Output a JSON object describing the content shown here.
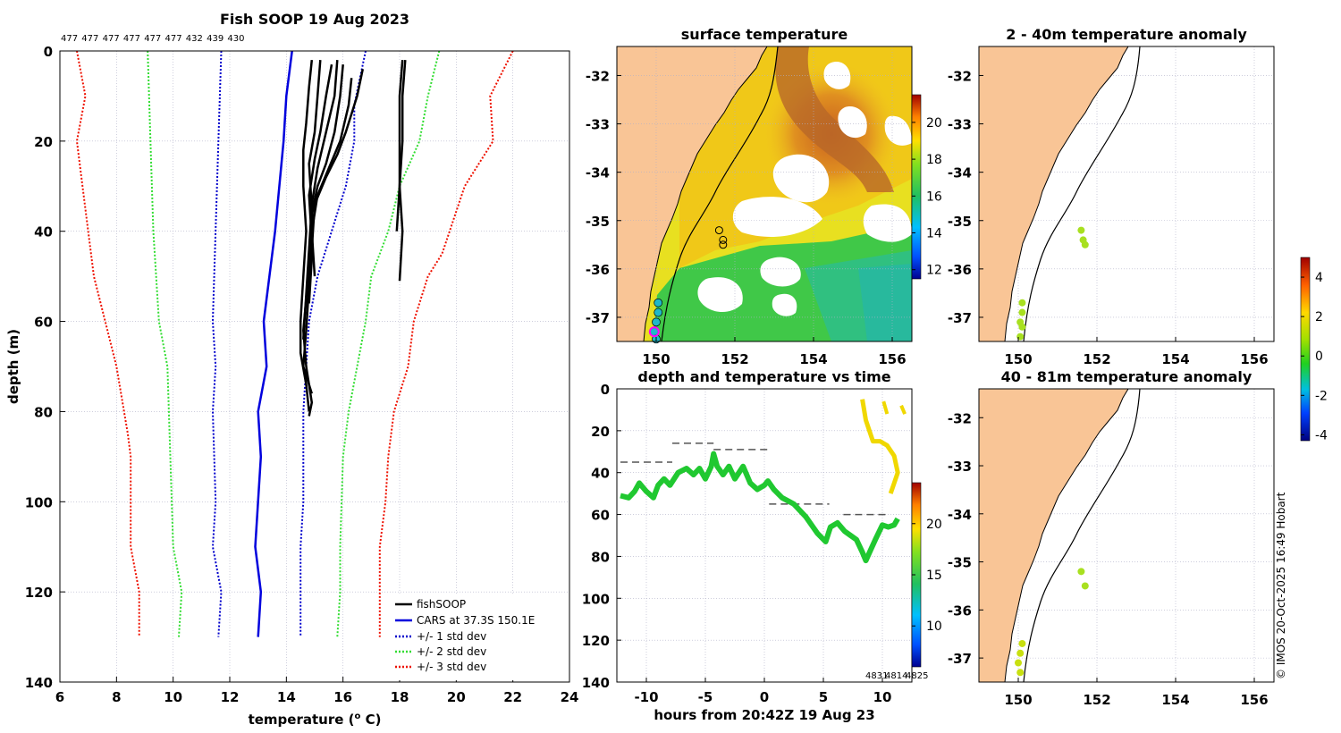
{
  "colors": {
    "land": "#f9c596",
    "cars": "#0000dd",
    "std1": "#0000cc",
    "std2": "#33dd33",
    "std3": "#ee1100",
    "fish": "#000000",
    "grid": "#b0b0c8"
  },
  "chart_data": [
    {
      "type": "line",
      "name": "profile",
      "title": "Fish SOOP 19 Aug 2023",
      "top_labels": [
        "477",
        "477",
        "477",
        "477",
        "477",
        "477",
        "432",
        "439",
        "430"
      ],
      "xlabel": "temperature (",
      "xlabel_sup": "o",
      "xlabel_tail": " C)",
      "ylabel": "depth (m)",
      "xlim": [
        6,
        24
      ],
      "ylim": [
        0,
        140
      ],
      "xticks": [
        "6",
        "8",
        "10",
        "12",
        "14",
        "16",
        "18",
        "20",
        "22",
        "24"
      ],
      "yticks": [
        "0",
        "20",
        "40",
        "60",
        "80",
        "100",
        "120",
        "140"
      ],
      "legend": {
        "position": "bottom-right",
        "entries": [
          "fishSOOP",
          "CARS at 37.3S 150.1E",
          "+/- 1 std dev",
          "+/- 2 std dev",
          "+/- 3 std dev"
        ]
      },
      "cars": [
        [
          14.2,
          0
        ],
        [
          14.0,
          10
        ],
        [
          13.9,
          20
        ],
        [
          13.6,
          40
        ],
        [
          13.2,
          60
        ],
        [
          13.3,
          70
        ],
        [
          13.0,
          80
        ],
        [
          13.1,
          90
        ],
        [
          12.9,
          110
        ],
        [
          13.1,
          120
        ],
        [
          13.0,
          130
        ]
      ],
      "std_offsets": [
        1,
        2,
        3
      ],
      "std_minus": {
        "1": [
          [
            11.7,
            0
          ],
          [
            11.6,
            20
          ],
          [
            11.4,
            60
          ],
          [
            11.5,
            70
          ],
          [
            11.4,
            80
          ],
          [
            11.5,
            100
          ],
          [
            11.4,
            110
          ],
          [
            11.7,
            120
          ],
          [
            11.6,
            130
          ]
        ],
        "2": [
          [
            9.1,
            0
          ],
          [
            9.2,
            20
          ],
          [
            9.3,
            40
          ],
          [
            9.5,
            60
          ],
          [
            9.8,
            70
          ],
          [
            9.9,
            90
          ],
          [
            10.0,
            110
          ],
          [
            10.3,
            120
          ],
          [
            10.2,
            130
          ]
        ],
        "3": [
          [
            6.6,
            0
          ],
          [
            6.9,
            10
          ],
          [
            6.6,
            20
          ],
          [
            6.8,
            30
          ],
          [
            7.2,
            50
          ],
          [
            7.6,
            60
          ],
          [
            8.0,
            70
          ],
          [
            8.4,
            85
          ],
          [
            8.5,
            90
          ],
          [
            8.5,
            110
          ],
          [
            8.8,
            120
          ],
          [
            8.8,
            130
          ]
        ]
      },
      "std_plus": {
        "1": [
          [
            16.8,
            0
          ],
          [
            16.4,
            12
          ],
          [
            16.4,
            20
          ],
          [
            16.1,
            30
          ],
          [
            15.6,
            40
          ],
          [
            15.1,
            50
          ],
          [
            14.8,
            60
          ],
          [
            14.7,
            70
          ],
          [
            14.6,
            80
          ],
          [
            14.6,
            100
          ],
          [
            14.5,
            110
          ],
          [
            14.5,
            130
          ]
        ],
        "2": [
          [
            19.4,
            0
          ],
          [
            19.0,
            10
          ],
          [
            18.7,
            20
          ],
          [
            18.0,
            30
          ],
          [
            17.6,
            40
          ],
          [
            17.0,
            50
          ],
          [
            16.8,
            60
          ],
          [
            16.5,
            70
          ],
          [
            16.2,
            80
          ],
          [
            16.0,
            90
          ],
          [
            15.9,
            110
          ],
          [
            15.9,
            120
          ],
          [
            15.8,
            130
          ]
        ],
        "3": [
          [
            22.0,
            0
          ],
          [
            21.2,
            10
          ],
          [
            21.3,
            20
          ],
          [
            20.3,
            30
          ],
          [
            19.5,
            45
          ],
          [
            19.0,
            50
          ],
          [
            18.5,
            60
          ],
          [
            18.3,
            70
          ],
          [
            17.8,
            80
          ],
          [
            17.6,
            90
          ],
          [
            17.5,
            100
          ],
          [
            17.3,
            110
          ],
          [
            17.3,
            130
          ]
        ]
      },
      "fish": [
        [
          [
            14.9,
            2
          ],
          [
            14.8,
            8
          ],
          [
            14.7,
            16
          ],
          [
            14.6,
            22
          ],
          [
            14.6,
            30
          ],
          [
            14.7,
            40
          ],
          [
            14.6,
            50
          ],
          [
            14.5,
            60
          ],
          [
            14.5,
            67
          ],
          [
            14.7,
            74
          ],
          [
            14.8,
            80
          ]
        ],
        [
          [
            15.2,
            2
          ],
          [
            15.1,
            10
          ],
          [
            15.0,
            18
          ],
          [
            14.8,
            25
          ],
          [
            14.9,
            35
          ],
          [
            14.8,
            45
          ],
          [
            14.7,
            55
          ],
          [
            14.6,
            62
          ],
          [
            14.7,
            70
          ],
          [
            14.9,
            78
          ],
          [
            14.8,
            81
          ]
        ],
        [
          [
            15.6,
            3
          ],
          [
            15.4,
            10
          ],
          [
            15.2,
            18
          ],
          [
            15.0,
            24
          ],
          [
            14.8,
            32
          ],
          [
            14.9,
            42
          ],
          [
            14.8,
            52
          ],
          [
            14.7,
            62
          ],
          [
            14.6,
            70
          ],
          [
            14.9,
            76
          ]
        ],
        [
          [
            15.8,
            2
          ],
          [
            15.7,
            10
          ],
          [
            15.4,
            18
          ],
          [
            15.1,
            26
          ],
          [
            14.9,
            34
          ],
          [
            14.8,
            44
          ],
          [
            14.7,
            54
          ],
          [
            14.6,
            64
          ]
        ],
        [
          [
            16.0,
            3
          ],
          [
            15.9,
            10
          ],
          [
            15.7,
            18
          ],
          [
            15.4,
            25
          ],
          [
            15.1,
            30
          ],
          [
            14.9,
            36
          ],
          [
            14.9,
            46
          ],
          [
            14.8,
            56
          ]
        ],
        [
          [
            16.3,
            6
          ],
          [
            16.2,
            12
          ],
          [
            15.9,
            20
          ],
          [
            15.5,
            26
          ],
          [
            15.1,
            32
          ],
          [
            14.9,
            40
          ],
          [
            15.0,
            50
          ]
        ],
        [
          [
            16.7,
            4
          ],
          [
            16.5,
            10
          ],
          [
            16.1,
            18
          ],
          [
            15.8,
            23
          ],
          [
            15.4,
            28
          ],
          [
            15.0,
            34
          ],
          [
            14.9,
            44
          ]
        ],
        [
          [
            18.1,
            2
          ],
          [
            18.0,
            10
          ],
          [
            18.0,
            20
          ],
          [
            18.0,
            30
          ],
          [
            17.9,
            40
          ]
        ],
        [
          [
            18.2,
            2
          ],
          [
            18.1,
            10
          ],
          [
            18.1,
            20
          ],
          [
            18.0,
            30
          ],
          [
            18.1,
            40
          ],
          [
            18.0,
            51
          ]
        ]
      ]
    },
    {
      "type": "heatmap",
      "name": "surface-map",
      "title": "surface temperature",
      "xlim": [
        149,
        156.5
      ],
      "ylim": [
        -37.5,
        -31.4
      ],
      "xticks": [
        "150",
        "152",
        "154",
        "156"
      ],
      "yticks": [
        "-32",
        "-33",
        "-34",
        "-35",
        "-36",
        "-37"
      ],
      "colorbar": {
        "min": 11.5,
        "max": 21.5,
        "ticks": [
          "12",
          "14",
          "16",
          "18",
          "20"
        ]
      },
      "stations": [
        [
          151.6,
          -35.2
        ],
        [
          151.7,
          -35.4
        ],
        [
          151.7,
          -35.5
        ]
      ],
      "track": [
        [
          150.05,
          -36.7
        ],
        [
          150.05,
          -36.9
        ],
        [
          150.0,
          -37.1
        ],
        [
          149.95,
          -37.3
        ],
        [
          150.0,
          -37.45
        ]
      ]
    },
    {
      "type": "line",
      "name": "depth-time",
      "title": "depth and temperature vs time",
      "xlabel": "hours from 20:42Z 19 Aug 23",
      "xlim": [
        -12.5,
        12.5
      ],
      "ylim": [
        0,
        140
      ],
      "xticks": [
        "-10",
        "-5",
        "0",
        "5",
        "10"
      ],
      "yticks": [
        "0",
        "20",
        "40",
        "60",
        "80",
        "100",
        "120",
        "140"
      ],
      "colorbar": {
        "min": 6,
        "max": 24,
        "ticks": [
          "10",
          "15",
          "20"
        ]
      },
      "corner_labels": [
        "4831",
        "4814",
        "4825"
      ],
      "bottom_trace": [
        [
          -12.2,
          51
        ],
        [
          -11.5,
          52
        ],
        [
          -11,
          49
        ],
        [
          -10.6,
          45
        ],
        [
          -10,
          49
        ],
        [
          -9.4,
          52
        ],
        [
          -9,
          46
        ],
        [
          -8.5,
          43
        ],
        [
          -8,
          46
        ],
        [
          -7.3,
          40
        ],
        [
          -6.6,
          38
        ],
        [
          -6,
          41
        ],
        [
          -5.5,
          38
        ],
        [
          -5,
          43
        ],
        [
          -4.5,
          37
        ],
        [
          -4.3,
          31
        ],
        [
          -4,
          37
        ],
        [
          -3.5,
          41
        ],
        [
          -3,
          37
        ],
        [
          -2.5,
          43
        ],
        [
          -1.8,
          37
        ],
        [
          -1.2,
          45
        ],
        [
          -0.6,
          48
        ],
        [
          0,
          46
        ],
        [
          0.3,
          44
        ],
        [
          0.8,
          48
        ],
        [
          1.5,
          52
        ],
        [
          2.5,
          55
        ],
        [
          3.5,
          61
        ],
        [
          4.5,
          69
        ],
        [
          5.2,
          73
        ],
        [
          5.6,
          66
        ],
        [
          6.2,
          64
        ],
        [
          6.8,
          68
        ],
        [
          7.3,
          70
        ],
        [
          7.8,
          72
        ],
        [
          8.3,
          78
        ],
        [
          8.6,
          82
        ],
        [
          9,
          77
        ],
        [
          9.4,
          72
        ],
        [
          10,
          65
        ],
        [
          10.5,
          66
        ],
        [
          11,
          65
        ],
        [
          11.3,
          62
        ]
      ],
      "warm_trace": [
        [
          8.3,
          5
        ],
        [
          8.6,
          15
        ],
        [
          9.2,
          25
        ],
        [
          9.8,
          25
        ],
        [
          10.4,
          27
        ],
        [
          11,
          32
        ],
        [
          11.3,
          40
        ],
        [
          11.0,
          45
        ],
        [
          10.7,
          50
        ]
      ],
      "warm_spikes": [
        [
          10.1,
          6
        ],
        [
          10.4,
          12
        ],
        [
          11.6,
          8
        ],
        [
          11.9,
          12
        ]
      ],
      "casts_x": [
        -7.8,
        -4.3,
        0.4,
        6.0,
        6.7,
        10.6
      ],
      "dashed": [
        [
          [
            -12.2,
            35
          ],
          [
            -7.8,
            35
          ]
        ],
        [
          [
            -7.8,
            26
          ],
          [
            -4.3,
            26
          ]
        ],
        [
          [
            -4.3,
            29
          ],
          [
            0.4,
            29
          ]
        ],
        [
          [
            0.4,
            55
          ],
          [
            5.5,
            55
          ]
        ],
        [
          [
            6.7,
            60
          ],
          [
            10.6,
            60
          ]
        ]
      ]
    },
    {
      "type": "scatter",
      "name": "anomaly-upper",
      "title": "2 - 40m temperature anomaly",
      "xlim": [
        149,
        156.5
      ],
      "ylim": [
        -37.5,
        -31.4
      ],
      "xticks": [
        "150",
        "152",
        "154",
        "156"
      ],
      "yticks": [
        "-32",
        "-33",
        "-34",
        "-35",
        "-36",
        "-37"
      ],
      "points": [
        [
          151.6,
          -35.2
        ],
        [
          151.65,
          -35.4
        ],
        [
          151.7,
          -35.5
        ],
        [
          150.1,
          -36.7
        ],
        [
          150.1,
          -36.9
        ],
        [
          150.05,
          -37.1
        ],
        [
          150.1,
          -37.2
        ],
        [
          150.05,
          -37.4
        ]
      ]
    },
    {
      "type": "scatter",
      "name": "anomaly-lower",
      "title": "40 - 81m temperature anomaly",
      "xlim": [
        149,
        156.5
      ],
      "ylim": [
        -37.5,
        -31.4
      ],
      "xticks": [
        "150",
        "152",
        "154",
        "156"
      ],
      "yticks": [
        "-32",
        "-33",
        "-34",
        "-35",
        "-36",
        "-37"
      ],
      "points": [
        [
          151.6,
          -35.2
        ],
        [
          151.7,
          -35.5
        ],
        [
          150.1,
          -36.7
        ],
        [
          150.05,
          -36.9
        ],
        [
          150.0,
          -37.1
        ],
        [
          150.05,
          -37.3
        ]
      ],
      "colorbar": {
        "min": -4.3,
        "max": 5.0,
        "ticks": [
          "4",
          "2",
          "0",
          "-2",
          "-4"
        ]
      }
    }
  ],
  "footer": {
    "credit": "© IMOS 20-Oct-2025 16:49 Hobart"
  }
}
